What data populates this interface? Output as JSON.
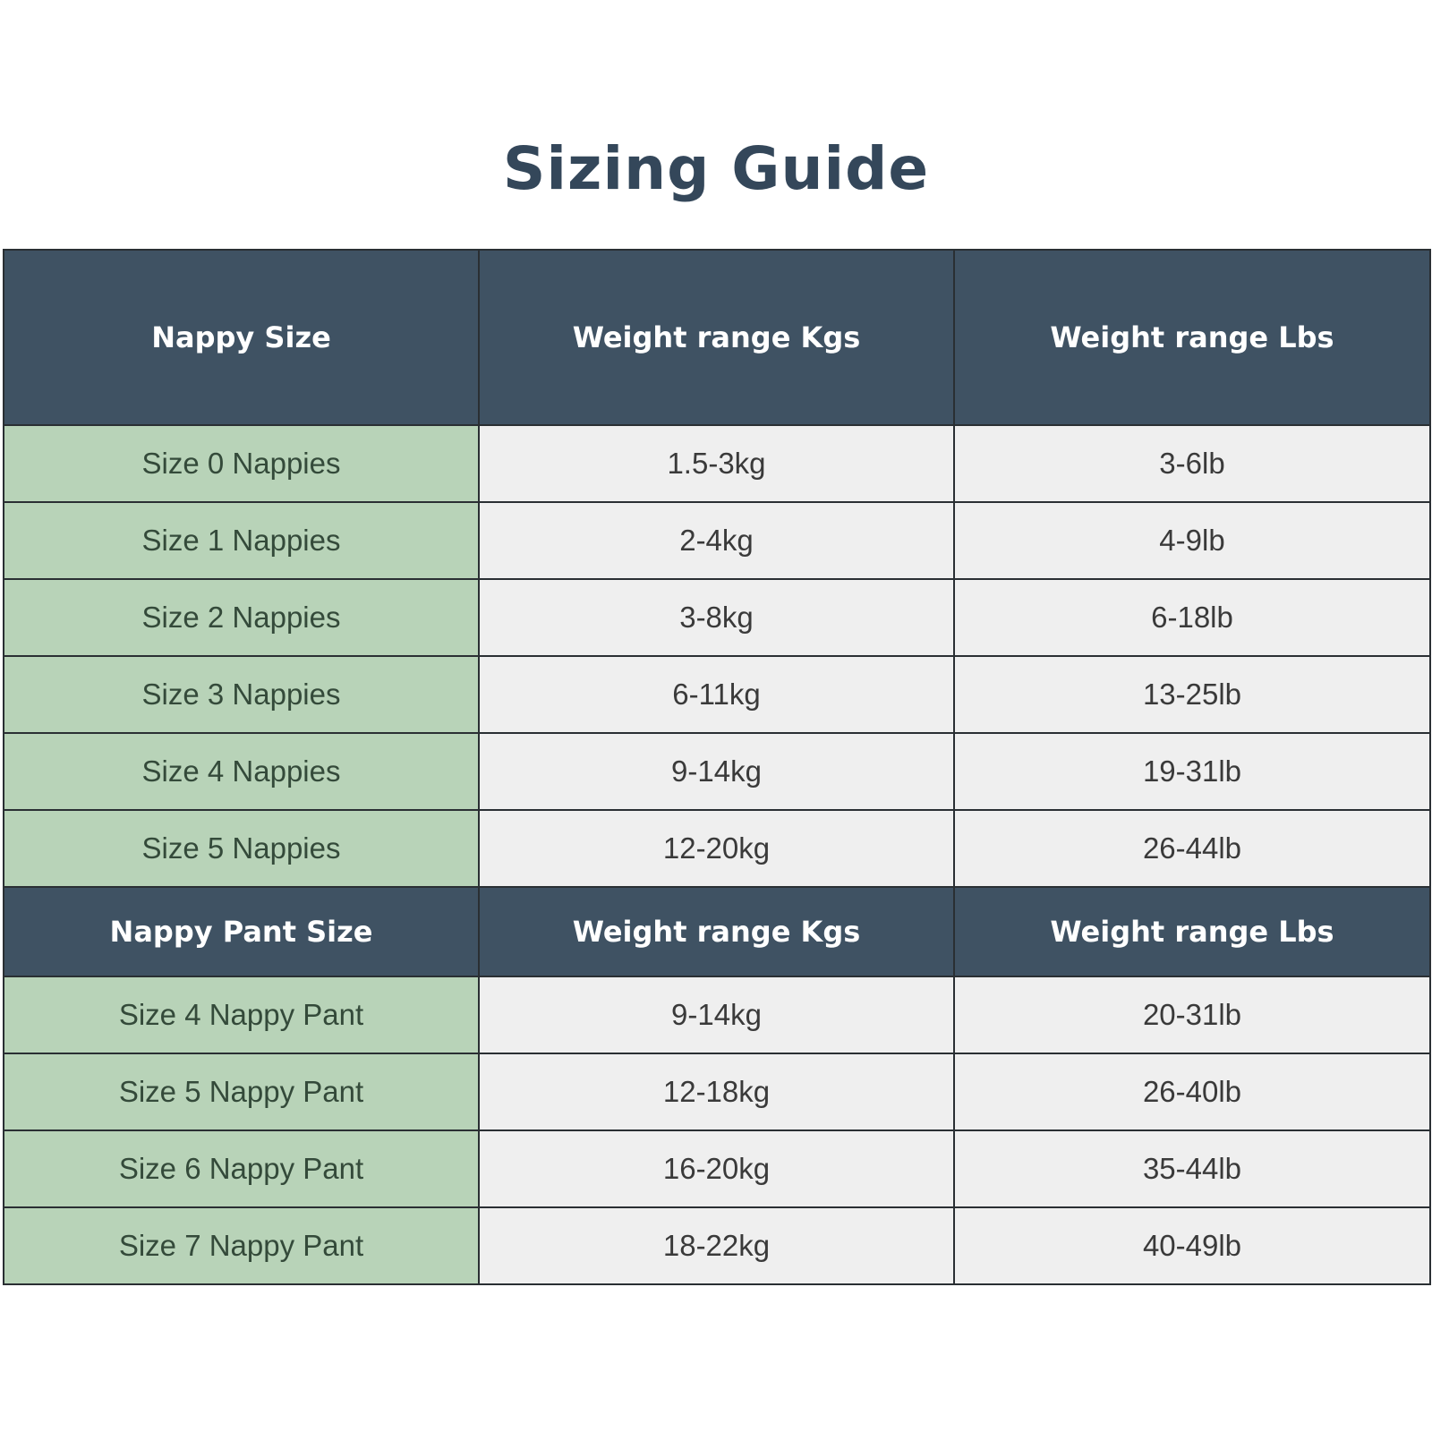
{
  "title": "Sizing Guide",
  "colors": {
    "header_bg": "#3f5263",
    "size_column_bg": "#b8d3b8",
    "cell_bg": "#efefef"
  },
  "nappies": {
    "headers": [
      "Nappy Size",
      "Weight range Kgs",
      "Weight range Lbs"
    ],
    "rows": [
      [
        "Size 0 Nappies",
        "1.5-3kg",
        "3-6lb"
      ],
      [
        "Size 1 Nappies",
        "2-4kg",
        "4-9lb"
      ],
      [
        "Size 2 Nappies",
        "3-8kg",
        "6-18lb"
      ],
      [
        "Size 3 Nappies",
        "6-11kg",
        "13-25lb"
      ],
      [
        "Size 4 Nappies",
        "9-14kg",
        "19-31lb"
      ],
      [
        "Size 5 Nappies",
        "12-20kg",
        "26-44lb"
      ]
    ]
  },
  "pants": {
    "headers": [
      "Nappy Pant Size",
      "Weight range Kgs",
      "Weight range Lbs"
    ],
    "rows": [
      [
        "Size 4 Nappy Pant",
        "9-14kg",
        "20-31lb"
      ],
      [
        "Size 5 Nappy Pant",
        "12-18kg",
        "26-40lb"
      ],
      [
        "Size 6 Nappy Pant",
        "16-20kg",
        "35-44lb"
      ],
      [
        "Size 7 Nappy Pant",
        "18-22kg",
        "40-49lb"
      ]
    ]
  }
}
